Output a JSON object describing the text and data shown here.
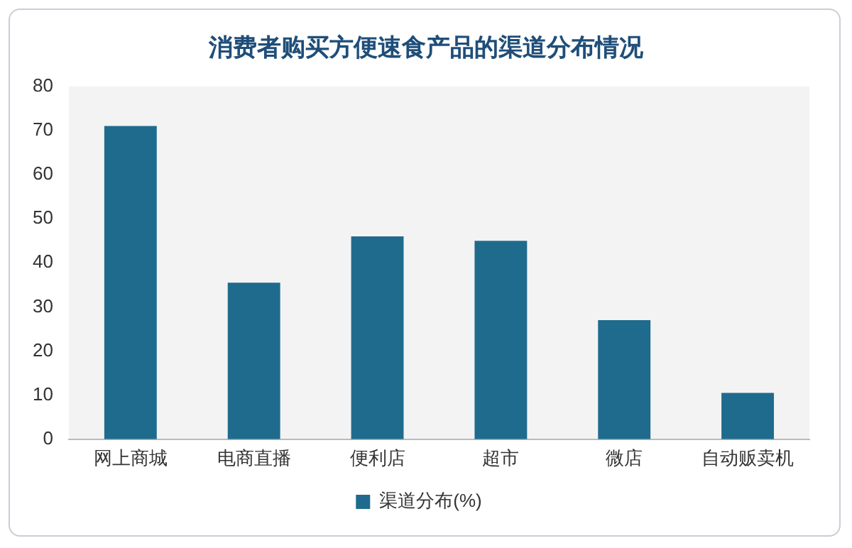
{
  "chart_data": {
    "type": "bar",
    "title": "消费者购买方便速食产品的渠道分布情况",
    "categories": [
      "网上商城",
      "电商直播",
      "便利店",
      "超市",
      "微店",
      "自动贩卖机"
    ],
    "series": [
      {
        "name": "渠道分布(%)",
        "color": "#1f6b8e",
        "values": [
          71,
          35.5,
          46,
          45,
          27,
          10.5
        ]
      }
    ],
    "ylim": [
      0,
      80
    ],
    "yticks": [
      0,
      10,
      20,
      30,
      40,
      50,
      60,
      70,
      80
    ],
    "grid": false,
    "legend": "bottom"
  }
}
